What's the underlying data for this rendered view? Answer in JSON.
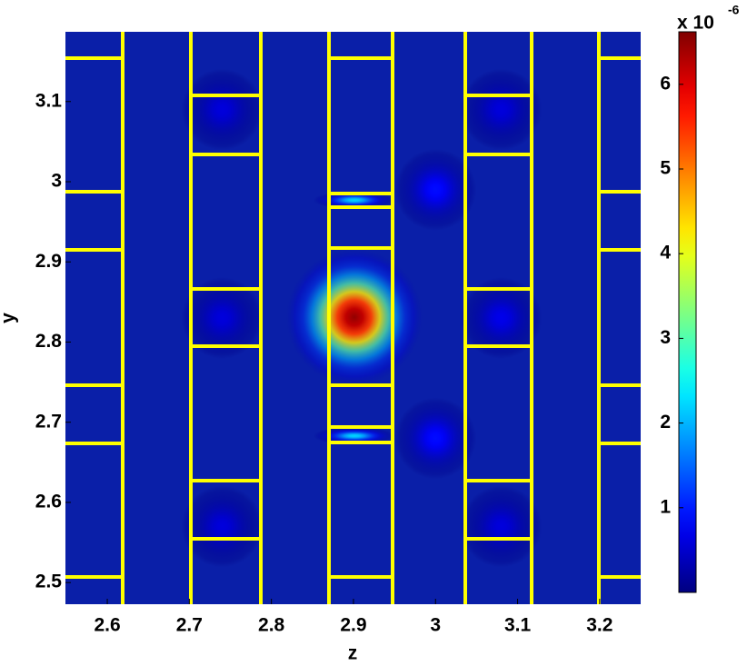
{
  "chart_data": {
    "type": "heatmap",
    "xlabel": "z",
    "ylabel": "y",
    "xlim": [
      2.549,
      3.25
    ],
    "xticks": [
      2.6,
      2.7,
      2.8,
      2.9,
      3,
      3.1,
      3.2
    ],
    "ylim": [
      2.473,
      3.187
    ],
    "yticks": [
      2.5,
      2.6,
      2.7,
      2.8,
      2.9,
      3,
      3.1
    ],
    "colormap": "jet",
    "background": "#0a1fa8",
    "clim": [
      0,
      6.62
    ],
    "cticks": [
      1,
      2,
      3,
      4,
      5,
      6
    ],
    "colorbar_label": "x 10",
    "colorbar_exponent": "-6",
    "peaks": [
      {
        "z": 2.901,
        "y": 2.831,
        "value": 6.5
      },
      {
        "z": 2.901,
        "y": 2.977,
        "value": 2.2
      },
      {
        "z": 2.901,
        "y": 2.683,
        "value": 2.2
      },
      {
        "z": 3.0,
        "y": 2.99,
        "value": 0.9
      },
      {
        "z": 3.0,
        "y": 2.68,
        "value": 0.9
      },
      {
        "z": 2.74,
        "y": 2.83,
        "value": 0.6
      },
      {
        "z": 3.08,
        "y": 2.83,
        "value": 0.7
      },
      {
        "z": 2.74,
        "y": 3.09,
        "value": 0.6
      },
      {
        "z": 3.08,
        "y": 3.09,
        "value": 0.6
      },
      {
        "z": 2.74,
        "y": 2.57,
        "value": 0.6
      },
      {
        "z": 3.08,
        "y": 2.57,
        "value": 0.6
      }
    ]
  }
}
